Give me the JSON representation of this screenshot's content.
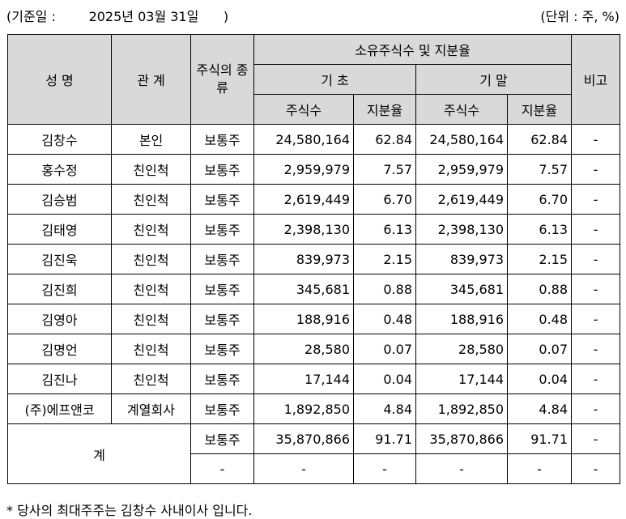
{
  "header": {
    "date_text": "(기준일 :        2025년 03월 31일      )",
    "unit_text": "(단위 : 주, %)"
  },
  "table": {
    "headers": {
      "name": "성 명",
      "relation": "관 계",
      "stock_type": "주식의 종류",
      "ownership_group": "소유주식수 및 지분율",
      "period_start": "기 초",
      "period_end": "기 말",
      "shares": "주식수",
      "ratio": "지분율",
      "remarks": "비고"
    },
    "rows": [
      {
        "name": "김창수",
        "relation": "본인",
        "stock_type": "보통주",
        "start_shares": "24,580,164",
        "start_ratio": "62.84",
        "end_shares": "24,580,164",
        "end_ratio": "62.84",
        "remarks": "-"
      },
      {
        "name": "홍수정",
        "relation": "친인척",
        "stock_type": "보통주",
        "start_shares": "2,959,979",
        "start_ratio": "7.57",
        "end_shares": "2,959,979",
        "end_ratio": "7.57",
        "remarks": "-"
      },
      {
        "name": "김승범",
        "relation": "친인척",
        "stock_type": "보통주",
        "start_shares": "2,619,449",
        "start_ratio": "6.70",
        "end_shares": "2,619,449",
        "end_ratio": "6.70",
        "remarks": "-"
      },
      {
        "name": "김태영",
        "relation": "친인척",
        "stock_type": "보통주",
        "start_shares": "2,398,130",
        "start_ratio": "6.13",
        "end_shares": "2,398,130",
        "end_ratio": "6.13",
        "remarks": "-"
      },
      {
        "name": "김진욱",
        "relation": "친인척",
        "stock_type": "보통주",
        "start_shares": "839,973",
        "start_ratio": "2.15",
        "end_shares": "839,973",
        "end_ratio": "2.15",
        "remarks": "-"
      },
      {
        "name": "김진희",
        "relation": "친인척",
        "stock_type": "보통주",
        "start_shares": "345,681",
        "start_ratio": "0.88",
        "end_shares": "345,681",
        "end_ratio": "0.88",
        "remarks": "-"
      },
      {
        "name": "김영아",
        "relation": "친인척",
        "stock_type": "보통주",
        "start_shares": "188,916",
        "start_ratio": "0.48",
        "end_shares": "188,916",
        "end_ratio": "0.48",
        "remarks": "-"
      },
      {
        "name": "김명언",
        "relation": "친인척",
        "stock_type": "보통주",
        "start_shares": "28,580",
        "start_ratio": "0.07",
        "end_shares": "28,580",
        "end_ratio": "0.07",
        "remarks": "-"
      },
      {
        "name": "김진나",
        "relation": "친인척",
        "stock_type": "보통주",
        "start_shares": "17,144",
        "start_ratio": "0.04",
        "end_shares": "17,144",
        "end_ratio": "0.04",
        "remarks": "-"
      },
      {
        "name": "(주)에프앤코",
        "relation": "계열회사",
        "stock_type": "보통주",
        "start_shares": "1,892,850",
        "start_ratio": "4.84",
        "end_shares": "1,892,850",
        "end_ratio": "4.84",
        "remarks": "-"
      }
    ],
    "total": {
      "label": "계",
      "rows": [
        {
          "stock_type": "보통주",
          "start_shares": "35,870,866",
          "start_ratio": "91.71",
          "end_shares": "35,870,866",
          "end_ratio": "91.71",
          "remarks": "-"
        },
        {
          "stock_type": "-",
          "start_shares": "-",
          "start_ratio": "-",
          "end_shares": "-",
          "end_ratio": "-",
          "remarks": "-"
        }
      ]
    }
  },
  "footnote": "* 당사의 최대주주는 김창수 사내이사 입니다."
}
